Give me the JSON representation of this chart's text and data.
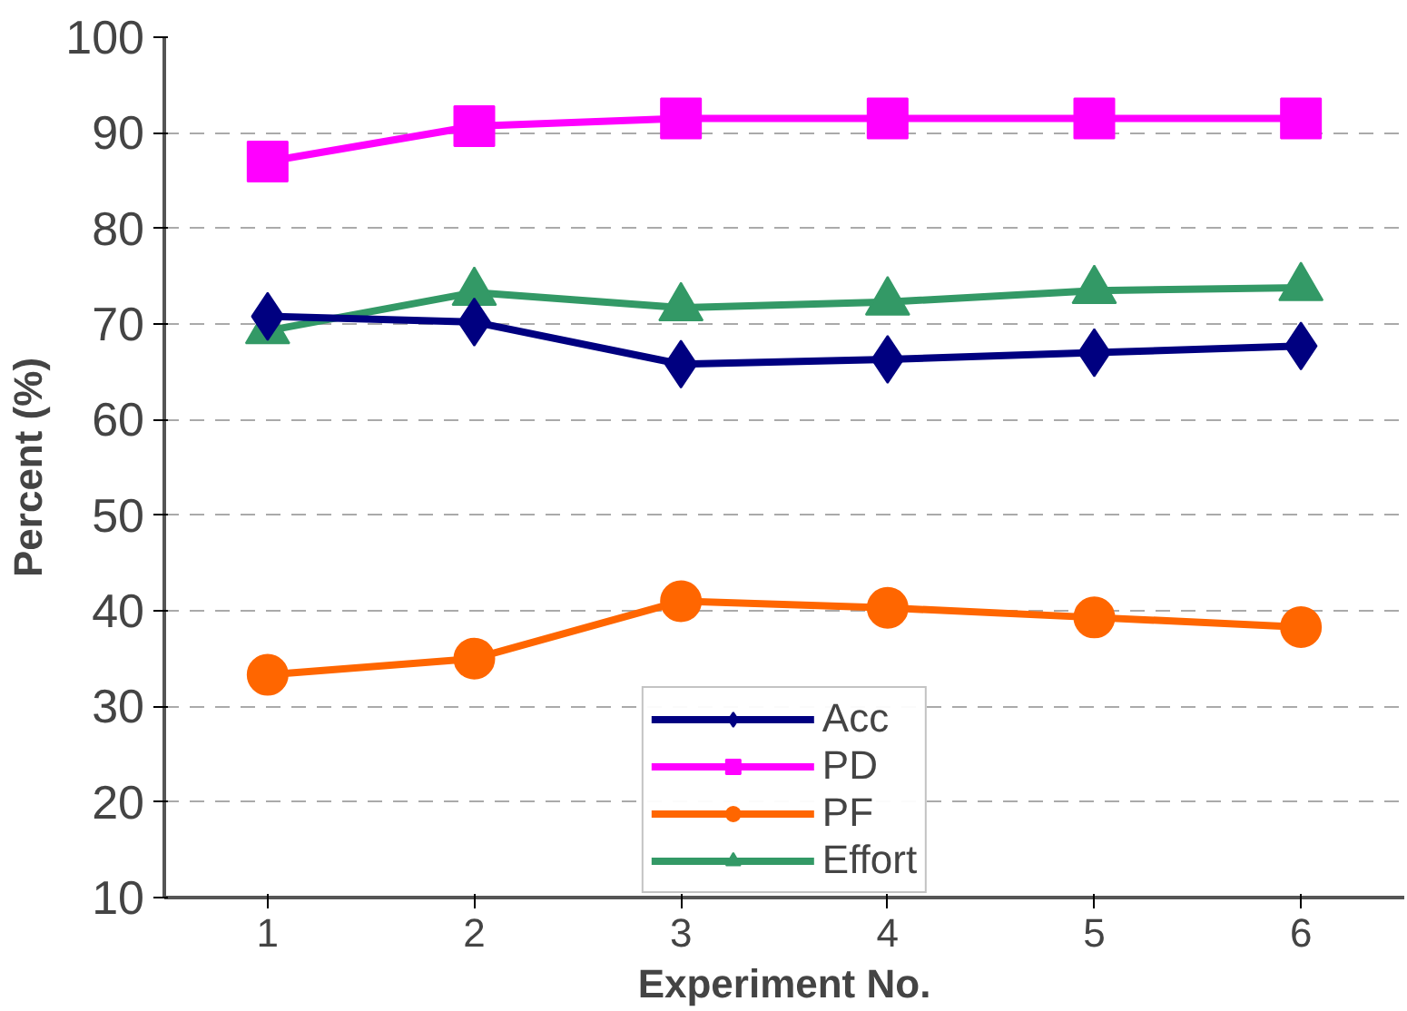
{
  "chart_data": {
    "type": "line",
    "xlabel": "Experiment No.",
    "ylabel": "Percent (%)",
    "categories": [
      "1",
      "2",
      "3",
      "4",
      "5",
      "6"
    ],
    "series": [
      {
        "name": "Acc",
        "color": "#000080",
        "marker": "diamond",
        "values": [
          70.8,
          70.2,
          65.8,
          66.3,
          67.0,
          67.7
        ]
      },
      {
        "name": "PD",
        "color": "#ff00ff",
        "marker": "square",
        "values": [
          87.0,
          90.7,
          91.5,
          91.5,
          91.5,
          91.5
        ]
      },
      {
        "name": "PF",
        "color": "#ff6600",
        "marker": "circle",
        "values": [
          33.3,
          35.0,
          41.0,
          40.3,
          39.3,
          38.3
        ]
      },
      {
        "name": "Effort",
        "color": "#339966",
        "marker": "triangle",
        "values": [
          69.3,
          73.3,
          71.7,
          72.3,
          73.5,
          73.8
        ]
      }
    ],
    "ylim": [
      10,
      100
    ],
    "yticks": [
      10,
      20,
      30,
      40,
      50,
      60,
      70,
      80,
      90,
      100
    ],
    "grid": "y",
    "legend": "bottom",
    "line_style": "solid"
  }
}
